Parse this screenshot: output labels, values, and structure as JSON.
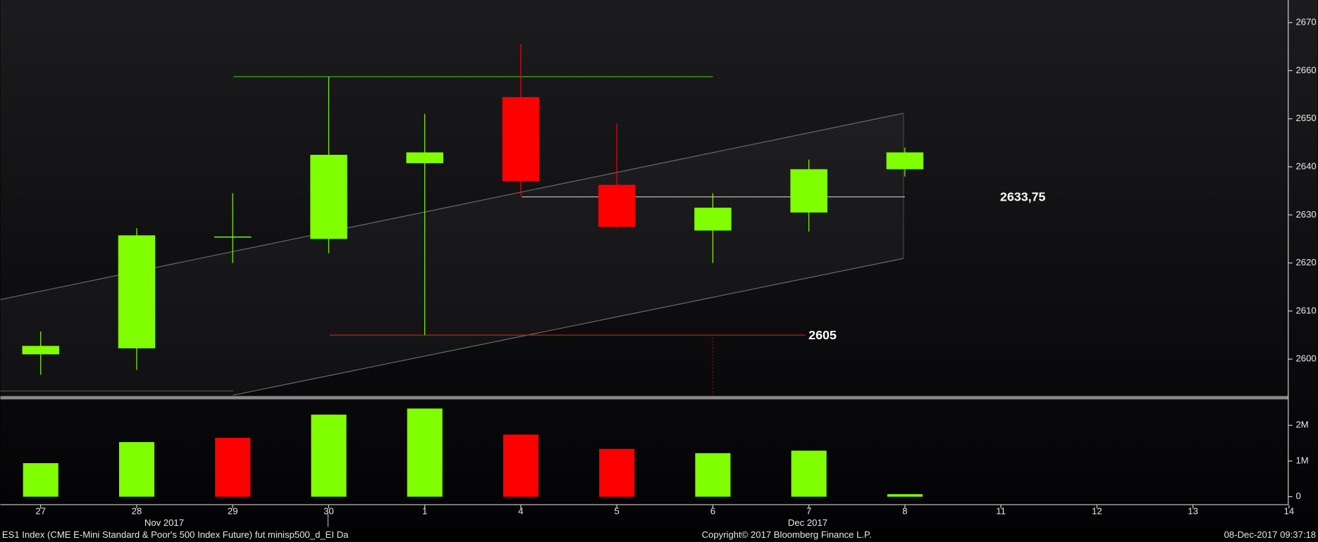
{
  "chart_data": {
    "type": "candlestick",
    "categories": [
      "27",
      "28",
      "29",
      "30",
      "1",
      "4",
      "5",
      "6",
      "7",
      "8",
      "11",
      "12",
      "13",
      "14"
    ],
    "open": [
      2601,
      2602.25,
      2625.5,
      2625,
      2640.75,
      2654.5,
      2636.25,
      2626.75,
      2630.5,
      2639.5,
      null,
      null,
      null,
      null
    ],
    "high": [
      2605.75,
      2627.25,
      2634.5,
      2658.75,
      2651,
      2665.5,
      2649,
      2634.5,
      2641.5,
      2644,
      null,
      null,
      null,
      null
    ],
    "low": [
      2596.75,
      2597.75,
      2620,
      2622,
      2605,
      2634,
      2627.25,
      2620,
      2626.5,
      2638,
      null,
      null,
      null,
      null
    ],
    "close": [
      2602.75,
      2625.75,
      2625.5,
      2642.5,
      2643,
      2637,
      2627.5,
      2631.5,
      2639.5,
      2643,
      null,
      null,
      null,
      null
    ],
    "up_color": "#80ff00",
    "down_color": "#ff0000",
    "ylim": [
      2592.5,
      2674.7
    ],
    "yticks": [
      2600,
      2610,
      2620,
      2630,
      2640,
      2650,
      2660,
      2670
    ],
    "levels": [
      {
        "value": 2658.75,
        "color": "#40c010"
      },
      {
        "value": 2605,
        "label": "2605",
        "color": "#d02020"
      },
      {
        "value": 2633.75,
        "label": "2633,75",
        "color": "#c8c8c8"
      }
    ],
    "volume": {
      "values": [
        940000,
        1530000,
        1650000,
        2300000,
        2470000,
        1740000,
        1340000,
        1220000,
        1290000,
        70000
      ],
      "colors": [
        "#80ff00",
        "#80ff00",
        "#ff0000",
        "#80ff00",
        "#80ff00",
        "#ff0000",
        "#ff0000",
        "#80ff00",
        "#80ff00",
        "#80ff00"
      ],
      "ylim": [
        0,
        2680000
      ],
      "yticks": [
        0,
        {
          "value": 1000000,
          "label": "1M"
        },
        {
          "value": 2000000,
          "label": "2M"
        }
      ]
    },
    "months": [
      "Nov 2017",
      "Dec 2017"
    ],
    "footer": {
      "left": "ES1 Index (CME E-Mini Standard & Poor's 500 Index Future) fut minisp500_d_EI  Da",
      "center": "Copyright© 2017 Bloomberg Finance L.P.",
      "right": "08-Dec-2017 09:37:18"
    }
  }
}
